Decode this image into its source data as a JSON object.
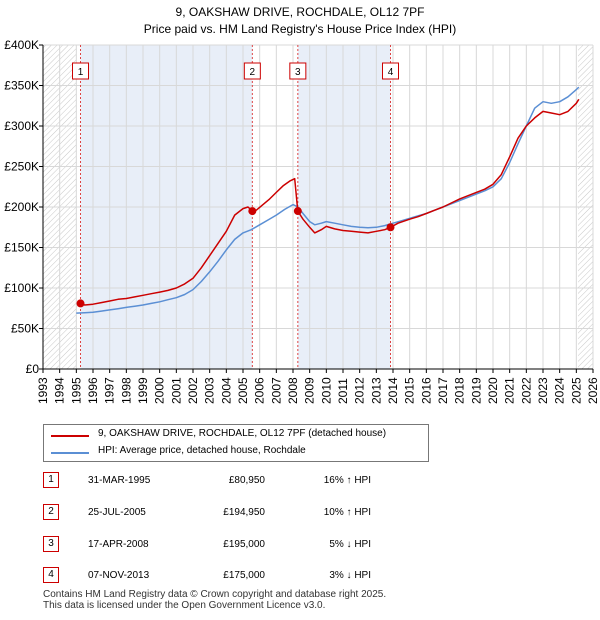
{
  "chart_data": {
    "type": "line",
    "title": "9, OAKSHAW DRIVE, ROCHDALE, OL12 7PF",
    "subtitle": "Price paid vs. HM Land Registry's House Price Index (HPI)",
    "xlim": [
      1993,
      2026
    ],
    "ylim": [
      0,
      400000
    ],
    "y_ticks": [
      {
        "value": 0,
        "label": "£0"
      },
      {
        "value": 50000,
        "label": "£50K"
      },
      {
        "value": 100000,
        "label": "£100K"
      },
      {
        "value": 150000,
        "label": "£150K"
      },
      {
        "value": 200000,
        "label": "£200K"
      },
      {
        "value": 250000,
        "label": "£250K"
      },
      {
        "value": 300000,
        "label": "£300K"
      },
      {
        "value": 350000,
        "label": "£350K"
      },
      {
        "value": 400000,
        "label": "£400K"
      }
    ],
    "x_ticks": [
      "1993",
      "1994",
      "1995",
      "1996",
      "1997",
      "1998",
      "1999",
      "2000",
      "2001",
      "2002",
      "2003",
      "2004",
      "2005",
      "2006",
      "2007",
      "2008",
      "2009",
      "2010",
      "2011",
      "2012",
      "2013",
      "2014",
      "2015",
      "2016",
      "2017",
      "2018",
      "2019",
      "2020",
      "2021",
      "2022",
      "2023",
      "2024",
      "2025",
      "2026"
    ],
    "grid": true,
    "hatch_regions": [
      [
        1993,
        1995.0
      ],
      [
        2025.1,
        2026
      ]
    ],
    "colors": {
      "property": "#cc0000",
      "hpi": "#5b8fd4",
      "shade": "#e8eef8",
      "grid": "#d8d8d8",
      "marker_line": "#dd4444"
    },
    "series": [
      {
        "name": "9, OAKSHAW DRIVE, ROCHDALE, OL12 7PF (detached house)",
        "color": "#cc0000",
        "x": [
          1995.25,
          1995.5,
          1996,
          1996.5,
          1997,
          1997.5,
          1998,
          1998.5,
          1999,
          1999.5,
          2000,
          2000.5,
          2001,
          2001.5,
          2002,
          2002.5,
          2003,
          2003.5,
          2004,
          2004.5,
          2005,
          2005.3,
          2005.56,
          2005.8,
          2006.2,
          2006.6,
          2007,
          2007.4,
          2007.8,
          2008.1,
          2008.29,
          2008.6,
          2009,
          2009.3,
          2009.7,
          2010,
          2010.5,
          2011,
          2011.5,
          2012,
          2012.5,
          2013,
          2013.5,
          2013.85,
          2014.3,
          2015,
          2015.5,
          2016,
          2016.5,
          2017,
          2017.5,
          2018,
          2018.5,
          2019,
          2019.5,
          2020,
          2020.5,
          2021,
          2021.5,
          2022,
          2022.5,
          2023,
          2023.5,
          2024,
          2024.5,
          2025,
          2025.15
        ],
        "values": [
          80950,
          79000,
          80000,
          82000,
          84000,
          86000,
          87000,
          89000,
          91000,
          93000,
          95000,
          97000,
          100000,
          105000,
          112000,
          125000,
          140000,
          155000,
          170000,
          190000,
          198000,
          200000,
          194950,
          196000,
          203000,
          210000,
          218000,
          226000,
          232000,
          235000,
          195000,
          185000,
          175000,
          168000,
          172000,
          176000,
          173000,
          171000,
          170000,
          169000,
          168000,
          170000,
          172000,
          175000,
          180000,
          185000,
          188000,
          192000,
          196000,
          200000,
          205000,
          210000,
          214000,
          218000,
          222000,
          228000,
          240000,
          262000,
          285000,
          300000,
          310000,
          318000,
          316000,
          314000,
          318000,
          328000,
          333000
        ]
      },
      {
        "name": "HPI: Average price, detached house, Rochdale",
        "color": "#5b8fd4",
        "x": [
          1995,
          1995.5,
          1996,
          1996.5,
          1997,
          1997.5,
          1998,
          1998.5,
          1999,
          1999.5,
          2000,
          2000.5,
          2001,
          2001.5,
          2002,
          2002.5,
          2003,
          2003.5,
          2004,
          2004.5,
          2005,
          2005.5,
          2006,
          2006.5,
          2007,
          2007.5,
          2008,
          2008.3,
          2008.6,
          2009,
          2009.3,
          2009.7,
          2010,
          2010.5,
          2011,
          2011.5,
          2012,
          2012.5,
          2013,
          2013.5,
          2014,
          2014.5,
          2015,
          2015.5,
          2016,
          2016.5,
          2017,
          2017.5,
          2018,
          2018.5,
          2019,
          2019.5,
          2020,
          2020.5,
          2021,
          2021.5,
          2022,
          2022.5,
          2023,
          2023.5,
          2024,
          2024.5,
          2025,
          2025.15
        ],
        "values": [
          69000,
          69500,
          70000,
          71500,
          73000,
          74500,
          76000,
          77500,
          79000,
          81000,
          83000,
          85500,
          88000,
          92000,
          98000,
          108000,
          120000,
          133000,
          147000,
          160000,
          168000,
          172000,
          178000,
          184000,
          190000,
          197000,
          203000,
          200000,
          192000,
          182000,
          178000,
          180000,
          182000,
          180000,
          178000,
          176000,
          175000,
          174500,
          175000,
          177000,
          180000,
          183000,
          186000,
          189000,
          192000,
          196000,
          200000,
          204000,
          208000,
          212000,
          216000,
          220000,
          225000,
          235000,
          255000,
          278000,
          300000,
          322000,
          330000,
          328000,
          330000,
          336000,
          345000,
          348000
        ]
      }
    ],
    "sale_markers": [
      {
        "label": "1",
        "x": 1995.25,
        "value": 80950
      },
      {
        "label": "2",
        "x": 2005.56,
        "value": 194950
      },
      {
        "label": "3",
        "x": 2008.29,
        "value": 195000
      },
      {
        "label": "4",
        "x": 2013.85,
        "value": 175000
      }
    ]
  },
  "legend": {
    "property_label": "9, OAKSHAW DRIVE, ROCHDALE, OL12 7PF (detached house)",
    "hpi_label": "HPI: Average price, detached house, Rochdale"
  },
  "sales": [
    {
      "num": "1",
      "date": "31-MAR-1995",
      "price": "£80,950",
      "hpi": "16% ↑ HPI"
    },
    {
      "num": "2",
      "date": "25-JUL-2005",
      "price": "£194,950",
      "hpi": "10% ↑ HPI"
    },
    {
      "num": "3",
      "date": "17-APR-2008",
      "price": "£195,000",
      "hpi": "5% ↓ HPI"
    },
    {
      "num": "4",
      "date": "07-NOV-2013",
      "price": "£175,000",
      "hpi": "3% ↓ HPI"
    }
  ],
  "footer": {
    "line1": "Contains HM Land Registry data © Crown copyright and database right 2025.",
    "line2": "This data is licensed under the Open Government Licence v3.0."
  }
}
